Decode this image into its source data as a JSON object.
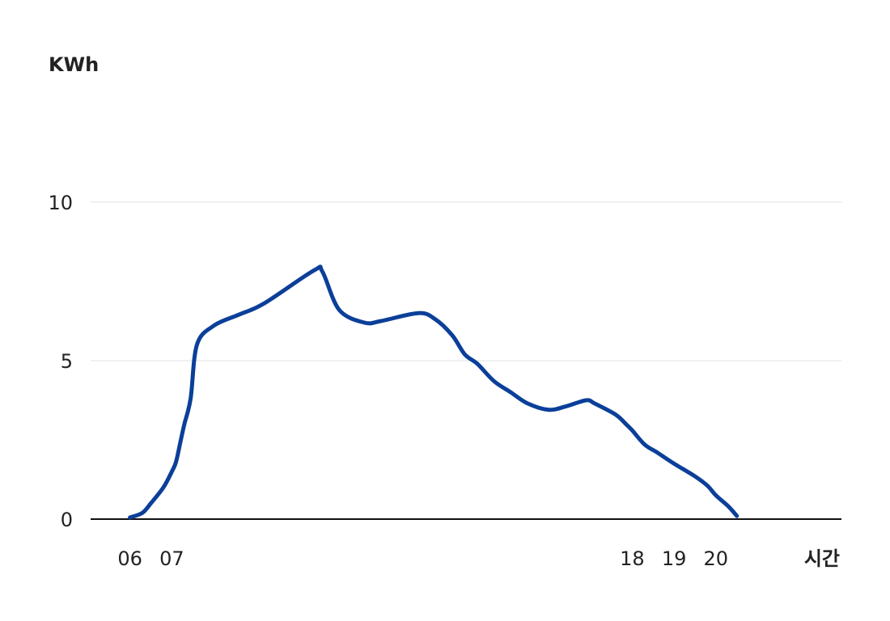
{
  "chart_data": {
    "type": "line",
    "ylabel": "KWh",
    "xlabel": "시간",
    "ylim": [
      0,
      10
    ],
    "y_ticks": [
      0,
      5,
      10
    ],
    "x_range": [
      5.06,
      23.0
    ],
    "x_ticks": [
      {
        "label": "06",
        "value": 6.0
      },
      {
        "label": "07",
        "value": 7.0
      },
      {
        "label": "18",
        "value": 18.0
      },
      {
        "label": "19",
        "value": 19.0
      },
      {
        "label": "20",
        "value": 20.0
      }
    ],
    "grid": true,
    "colors": {
      "series": "#0b3f99"
    },
    "series": [
      {
        "x": [
          6.0,
          6.3,
          6.5,
          6.8,
          7.0,
          7.1,
          7.2,
          7.3,
          7.45,
          7.6,
          8.0,
          8.6,
          9.2,
          10.4,
          10.6,
          11.0,
          11.6,
          12.0,
          12.9,
          13.3,
          13.7,
          14.0,
          14.3,
          14.7,
          15.1,
          15.5,
          16.0,
          16.4,
          16.9,
          17.1,
          17.6,
          17.85,
          18.0,
          18.3,
          18.6,
          19.0,
          19.5,
          19.8,
          20.0,
          20.3,
          20.5
        ],
        "y": [
          0.05,
          0.2,
          0.5,
          1.0,
          1.5,
          1.8,
          2.4,
          3.0,
          3.8,
          5.5,
          6.1,
          6.45,
          6.8,
          7.85,
          7.8,
          6.6,
          6.2,
          6.25,
          6.5,
          6.3,
          5.8,
          5.2,
          4.9,
          4.35,
          4.0,
          3.65,
          3.45,
          3.55,
          3.75,
          3.65,
          3.3,
          3.0,
          2.8,
          2.35,
          2.1,
          1.75,
          1.35,
          1.05,
          0.75,
          0.4,
          0.1
        ]
      }
    ]
  }
}
